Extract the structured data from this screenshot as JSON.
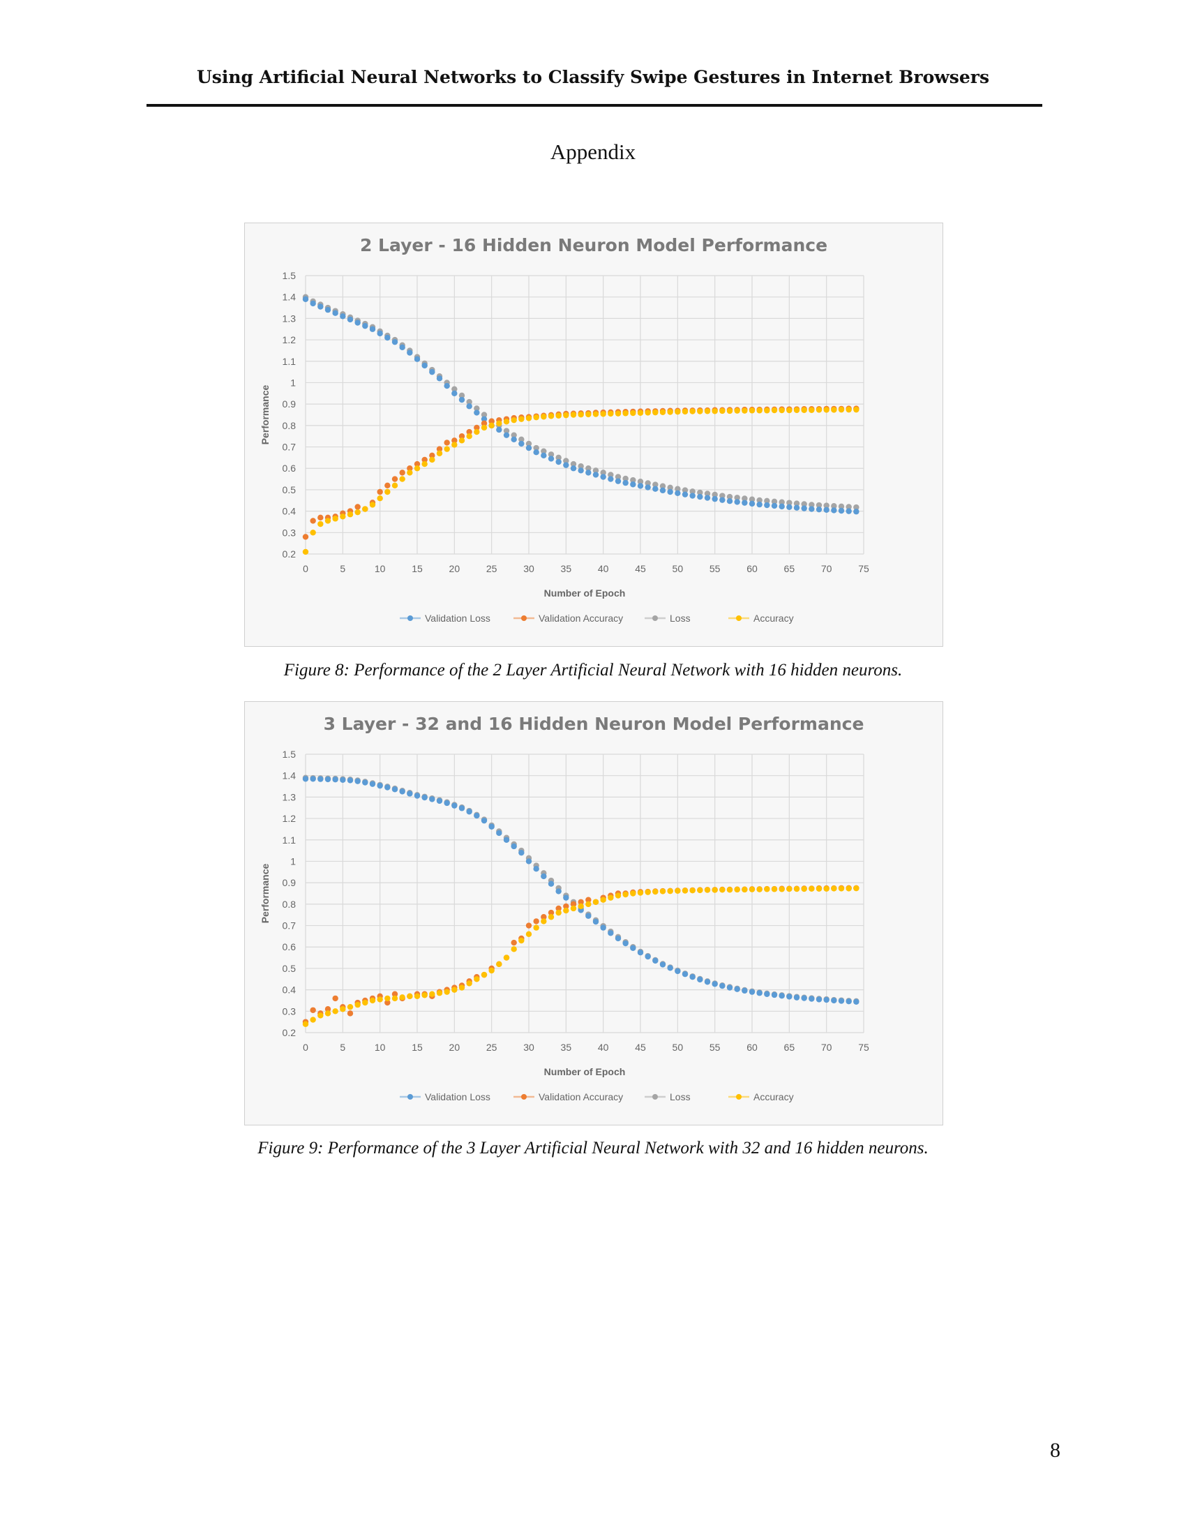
{
  "header": {
    "running_title": "Using Artificial Neural Networks to Classify Swipe Gestures in Internet Browsers"
  },
  "section": {
    "title": "Appendix"
  },
  "captions": {
    "fig8": "Figure 8: Performance of the 2 Layer Artificial Neural Network with 16 hidden neurons.",
    "fig9": "Figure 9: Performance of the 3 Layer Artificial Neural Network with 32 and 16 hidden neurons."
  },
  "page_number": "8",
  "chart_data": [
    {
      "type": "scatter",
      "title": "2 Layer - 16 Hidden Neuron Model Performance",
      "xlabel": "Number of Epoch",
      "ylabel": "Performance",
      "xlim": [
        0,
        75
      ],
      "ylim": [
        0.2,
        1.5
      ],
      "xticks": [
        "0",
        "5",
        "10",
        "15",
        "20",
        "25",
        "30",
        "35",
        "40",
        "45",
        "50",
        "55",
        "60",
        "65",
        "70",
        "75"
      ],
      "yticks": [
        "0.2",
        "0.3",
        "0.4",
        "0.5",
        "0.6",
        "0.7",
        "0.8",
        "0.9",
        "1",
        "1.1",
        "1.2",
        "1.3",
        "1.4",
        "1.5"
      ],
      "grid": true,
      "legend": "bottom",
      "series": [
        {
          "name": "Validation Loss",
          "color": "#5b9bd5",
          "values": [
            1.39,
            1.37,
            1.355,
            1.34,
            1.325,
            1.31,
            1.295,
            1.28,
            1.265,
            1.25,
            1.23,
            1.21,
            1.19,
            1.165,
            1.14,
            1.11,
            1.08,
            1.05,
            1.02,
            0.985,
            0.95,
            0.92,
            0.89,
            0.86,
            0.83,
            0.8,
            0.78,
            0.755,
            0.735,
            0.715,
            0.695,
            0.675,
            0.66,
            0.645,
            0.63,
            0.615,
            0.6,
            0.59,
            0.58,
            0.57,
            0.56,
            0.55,
            0.54,
            0.532,
            0.525,
            0.518,
            0.511,
            0.504,
            0.497,
            0.49,
            0.484,
            0.478,
            0.472,
            0.467,
            0.462,
            0.457,
            0.452,
            0.447,
            0.443,
            0.439,
            0.435,
            0.431,
            0.428,
            0.425,
            0.422,
            0.419,
            0.416,
            0.413,
            0.41,
            0.408,
            0.406,
            0.404,
            0.402,
            0.4,
            0.398
          ]
        },
        {
          "name": "Validation Accuracy",
          "color": "#ed7d31",
          "values": [
            0.28,
            0.355,
            0.37,
            0.37,
            0.375,
            0.39,
            0.4,
            0.42,
            0.41,
            0.44,
            0.49,
            0.52,
            0.55,
            0.58,
            0.6,
            0.62,
            0.64,
            0.66,
            0.69,
            0.72,
            0.73,
            0.75,
            0.77,
            0.79,
            0.81,
            0.82,
            0.825,
            0.83,
            0.835,
            0.838,
            0.84,
            0.843,
            0.846,
            0.849,
            0.852,
            0.855,
            0.856,
            0.857,
            0.858,
            0.86,
            0.861,
            0.862,
            0.863,
            0.864,
            0.865,
            0.866,
            0.867,
            0.867,
            0.868,
            0.869,
            0.869,
            0.87,
            0.87,
            0.871,
            0.871,
            0.872,
            0.872,
            0.873,
            0.873,
            0.874,
            0.874,
            0.874,
            0.875,
            0.875,
            0.876,
            0.876,
            0.876,
            0.877,
            0.877,
            0.877,
            0.878,
            0.878,
            0.878,
            0.879,
            0.879
          ]
        },
        {
          "name": "Loss",
          "color": "#a5a5a5",
          "values": [
            1.4,
            1.38,
            1.365,
            1.35,
            1.335,
            1.32,
            1.305,
            1.29,
            1.275,
            1.26,
            1.24,
            1.22,
            1.2,
            1.175,
            1.15,
            1.12,
            1.09,
            1.06,
            1.03,
            1.0,
            0.97,
            0.94,
            0.91,
            0.88,
            0.85,
            0.82,
            0.8,
            0.775,
            0.755,
            0.735,
            0.715,
            0.695,
            0.68,
            0.665,
            0.65,
            0.635,
            0.62,
            0.61,
            0.6,
            0.59,
            0.58,
            0.57,
            0.56,
            0.552,
            0.545,
            0.538,
            0.531,
            0.524,
            0.517,
            0.51,
            0.504,
            0.498,
            0.492,
            0.487,
            0.482,
            0.477,
            0.472,
            0.467,
            0.463,
            0.459,
            0.455,
            0.451,
            0.448,
            0.445,
            0.442,
            0.439,
            0.436,
            0.433,
            0.43,
            0.428,
            0.426,
            0.424,
            0.422,
            0.42,
            0.418
          ]
        },
        {
          "name": "Accuracy",
          "color": "#ffc000",
          "values": [
            0.21,
            0.3,
            0.34,
            0.355,
            0.365,
            0.375,
            0.385,
            0.395,
            0.41,
            0.43,
            0.46,
            0.49,
            0.52,
            0.55,
            0.58,
            0.6,
            0.62,
            0.64,
            0.67,
            0.69,
            0.71,
            0.73,
            0.75,
            0.77,
            0.79,
            0.8,
            0.81,
            0.818,
            0.825,
            0.83,
            0.834,
            0.838,
            0.841,
            0.844,
            0.846,
            0.848,
            0.85,
            0.851,
            0.852,
            0.853,
            0.854,
            0.855,
            0.856,
            0.857,
            0.858,
            0.859,
            0.86,
            0.861,
            0.862,
            0.863,
            0.864,
            0.865,
            0.866,
            0.866,
            0.867,
            0.867,
            0.868,
            0.868,
            0.869,
            0.869,
            0.87,
            0.87,
            0.87,
            0.871,
            0.871,
            0.871,
            0.872,
            0.872,
            0.872,
            0.873,
            0.873,
            0.873,
            0.874,
            0.874,
            0.874
          ]
        }
      ]
    },
    {
      "type": "scatter",
      "title": "3 Layer - 32 and 16 Hidden Neuron Model Performance",
      "xlabel": "Number of Epoch",
      "ylabel": "Performance",
      "xlim": [
        0,
        75
      ],
      "ylim": [
        0.2,
        1.5
      ],
      "xticks": [
        "0",
        "5",
        "10",
        "15",
        "20",
        "25",
        "30",
        "35",
        "40",
        "45",
        "50",
        "55",
        "60",
        "65",
        "70",
        "75"
      ],
      "yticks": [
        "0.2",
        "0.3",
        "0.4",
        "0.5",
        "0.6",
        "0.7",
        "0.8",
        "0.9",
        "1",
        "1.1",
        "1.2",
        "1.3",
        "1.4",
        "1.5"
      ],
      "grid": true,
      "legend": "bottom",
      "series": [
        {
          "name": "Validation Loss",
          "color": "#5b9bd5",
          "values": [
            1.385,
            1.385,
            1.384,
            1.383,
            1.382,
            1.38,
            1.378,
            1.374,
            1.368,
            1.361,
            1.353,
            1.345,
            1.336,
            1.326,
            1.316,
            1.306,
            1.298,
            1.29,
            1.282,
            1.272,
            1.26,
            1.248,
            1.232,
            1.213,
            1.19,
            1.162,
            1.132,
            1.1,
            1.07,
            1.04,
            1.0,
            0.965,
            0.93,
            0.895,
            0.86,
            0.83,
            0.8,
            0.772,
            0.745,
            0.718,
            0.69,
            0.665,
            0.64,
            0.617,
            0.595,
            0.574,
            0.555,
            0.536,
            0.518,
            0.502,
            0.487,
            0.473,
            0.46,
            0.448,
            0.437,
            0.427,
            0.418,
            0.41,
            0.403,
            0.396,
            0.39,
            0.385,
            0.38,
            0.376,
            0.372,
            0.368,
            0.364,
            0.361,
            0.358,
            0.355,
            0.353,
            0.35,
            0.348,
            0.346,
            0.344
          ]
        },
        {
          "name": "Validation Accuracy",
          "color": "#ed7d31",
          "values": [
            0.25,
            0.305,
            0.29,
            0.31,
            0.36,
            0.32,
            0.29,
            0.34,
            0.35,
            0.36,
            0.37,
            0.34,
            0.38,
            0.36,
            0.37,
            0.38,
            0.38,
            0.37,
            0.39,
            0.4,
            0.41,
            0.42,
            0.44,
            0.46,
            0.47,
            0.5,
            0.52,
            0.55,
            0.62,
            0.64,
            0.7,
            0.72,
            0.74,
            0.76,
            0.78,
            0.79,
            0.8,
            0.81,
            0.82,
            0.81,
            0.83,
            0.84,
            0.85,
            0.85,
            0.855,
            0.857,
            0.858,
            0.86,
            0.861,
            0.862,
            0.863,
            0.864,
            0.865,
            0.866,
            0.867,
            0.867,
            0.868,
            0.868,
            0.869,
            0.869,
            0.87,
            0.87,
            0.871,
            0.871,
            0.872,
            0.872,
            0.872,
            0.873,
            0.873,
            0.874,
            0.874,
            0.874,
            0.875,
            0.875,
            0.875
          ]
        },
        {
          "name": "Loss",
          "color": "#a5a5a5",
          "values": [
            1.39,
            1.389,
            1.388,
            1.387,
            1.386,
            1.384,
            1.382,
            1.378,
            1.372,
            1.365,
            1.357,
            1.349,
            1.34,
            1.33,
            1.32,
            1.31,
            1.302,
            1.294,
            1.286,
            1.276,
            1.264,
            1.252,
            1.236,
            1.217,
            1.195,
            1.168,
            1.14,
            1.11,
            1.08,
            1.05,
            1.015,
            0.98,
            0.945,
            0.91,
            0.875,
            0.84,
            0.81,
            0.78,
            0.752,
            0.725,
            0.698,
            0.672,
            0.647,
            0.623,
            0.6,
            0.578,
            0.558,
            0.539,
            0.521,
            0.505,
            0.49,
            0.476,
            0.463,
            0.451,
            0.44,
            0.43,
            0.421,
            0.413,
            0.406,
            0.399,
            0.393,
            0.388,
            0.383,
            0.379,
            0.375,
            0.371,
            0.367,
            0.364,
            0.361,
            0.358,
            0.356,
            0.353,
            0.351,
            0.349,
            0.347
          ]
        },
        {
          "name": "Accuracy",
          "color": "#ffc000",
          "values": [
            0.24,
            0.26,
            0.28,
            0.29,
            0.3,
            0.31,
            0.32,
            0.33,
            0.34,
            0.35,
            0.355,
            0.36,
            0.36,
            0.365,
            0.37,
            0.37,
            0.375,
            0.38,
            0.385,
            0.39,
            0.4,
            0.41,
            0.43,
            0.45,
            0.47,
            0.49,
            0.52,
            0.55,
            0.59,
            0.63,
            0.66,
            0.69,
            0.72,
            0.74,
            0.76,
            0.77,
            0.78,
            0.79,
            0.8,
            0.81,
            0.82,
            0.83,
            0.84,
            0.845,
            0.85,
            0.853,
            0.856,
            0.858,
            0.86,
            0.861,
            0.862,
            0.863,
            0.864,
            0.865,
            0.866,
            0.866,
            0.867,
            0.867,
            0.868,
            0.868,
            0.869,
            0.869,
            0.87,
            0.87,
            0.87,
            0.871,
            0.871,
            0.871,
            0.872,
            0.872,
            0.872,
            0.873,
            0.873,
            0.873,
            0.874
          ]
        }
      ]
    }
  ]
}
